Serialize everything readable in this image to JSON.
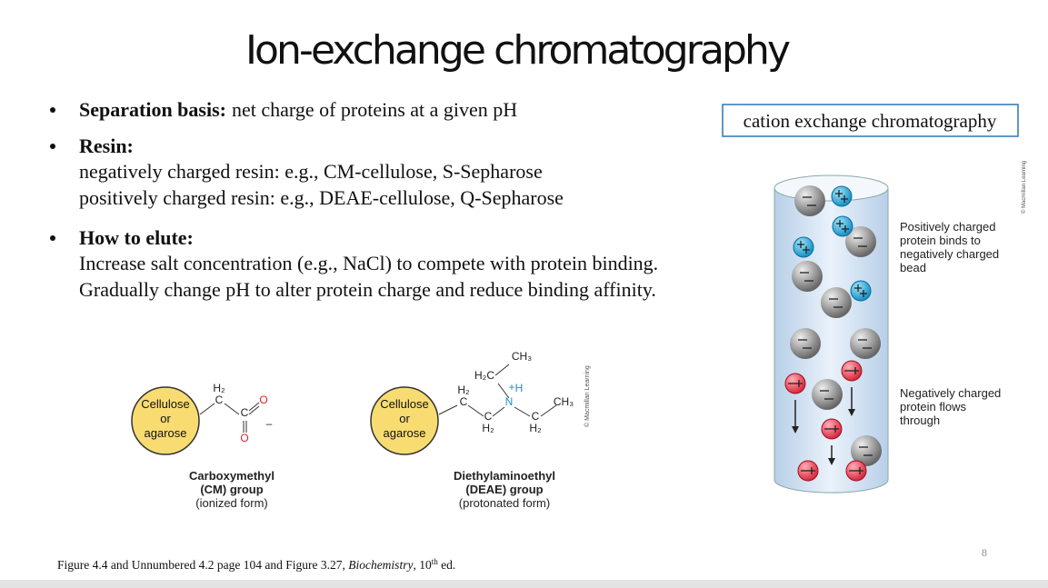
{
  "title": "Ion-exchange chromatography",
  "bullets": [
    {
      "label": "Separation basis:",
      "lines": [
        "net charge of proteins at a given pH"
      ]
    },
    {
      "label": "Resin:",
      "lines": [
        "negatively charged resin: e.g., CM-cellulose, S-Sepharose",
        "positively charged resin: e.g., DEAE-cellulose, Q-Sepharose"
      ]
    },
    {
      "label": "How to elute:",
      "lines": [
        "Increase salt concentration (e.g., NaCl) to compete with protein binding.",
        "Gradually change pH to alter protein charge and reduce binding affinity."
      ]
    }
  ],
  "callout": "cation exchange chromatography",
  "column": {
    "bound_label": [
      "Positively charged",
      "protein binds to",
      "negatively charged",
      "bead"
    ],
    "flow_label": [
      "Negatively charged",
      "protein flows",
      "through"
    ],
    "credit": "© Macmillan Learning"
  },
  "structures": [
    {
      "bead": [
        "Cellulose",
        "or",
        "agarose"
      ],
      "atoms": [
        "H₂",
        "C",
        "C",
        "O",
        "O",
        "–"
      ],
      "caption": [
        "Carboxymethyl",
        "(CM) group",
        "(ionized form)"
      ]
    },
    {
      "bead": [
        "Cellulose",
        "or",
        "agarose"
      ],
      "atoms": [
        "H₂",
        "C",
        "C",
        "H₂",
        "N",
        "+",
        "H",
        "H₂C",
        "CH₃",
        "CH₃",
        "C",
        "H₂"
      ],
      "caption": [
        "Diethylaminoethyl",
        "(DEAE) group",
        "(protonated form)"
      ],
      "credit": "© Macmillan Learning"
    }
  ],
  "footer": [
    "Figure 4.4 and Unnumbered 4.2 page 104 and Figure 3.27, ",
    "Biochemistry",
    ", 10",
    "th",
    " ed."
  ],
  "page_number": "8"
}
